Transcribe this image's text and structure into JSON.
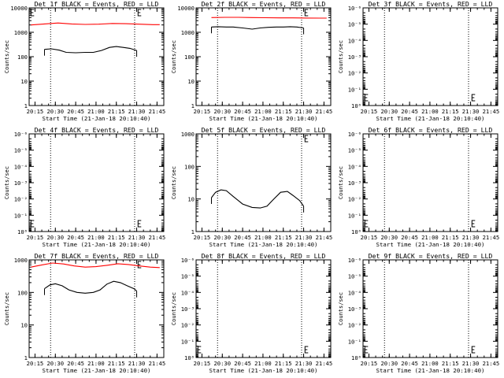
{
  "chart_data": [
    {
      "type": "line",
      "title": "Det 1f BLACK = Events, RED = LLD",
      "xlabel": "Start Time (21-Jan-18 20:10:40)",
      "ylabel": "Counts/sec",
      "yscale": "log",
      "ylim": [
        1,
        10000
      ],
      "ytick_labels": [
        "1",
        "10",
        "100",
        "1000",
        "10000"
      ],
      "xlim": [
        "20:10:40",
        "21:50:00"
      ],
      "xtick_labels": [
        "20:15",
        "20:30",
        "20:45",
        "21:00",
        "21:15",
        "21:30",
        "21:45"
      ],
      "vlines": [
        "20:26:30",
        "21:28:30"
      ],
      "brackets": [
        "20:12",
        "21:31"
      ],
      "series": [
        {
          "name": "Events",
          "color": "#000000",
          "x": [
            "20:22",
            "20:27",
            "20:33",
            "20:38",
            "20:45",
            "20:52",
            "20:58",
            "21:04",
            "21:10",
            "21:15",
            "21:20",
            "21:25",
            "21:30"
          ],
          "y": [
            200,
            210,
            185,
            150,
            145,
            150,
            150,
            180,
            240,
            260,
            240,
            220,
            180
          ]
        },
        {
          "name": "LLD",
          "color": "#ff0000",
          "x": [
            "20:12",
            "20:22",
            "20:32",
            "20:42",
            "20:52",
            "21:02",
            "21:12",
            "21:22",
            "21:32",
            "21:42",
            "21:47"
          ],
          "y": [
            2000,
            2200,
            2400,
            2200,
            2100,
            2150,
            2300,
            2250,
            2150,
            2050,
            2050
          ]
        }
      ]
    },
    {
      "type": "line",
      "title": "Det 2f BLACK = Events, RED = LLD",
      "xlabel": "Start Time (21-Jan-18 20:10:40)",
      "ylabel": "Counts/sec",
      "yscale": "log",
      "ylim": [
        1,
        10000
      ],
      "ytick_labels": [
        "1",
        "10",
        "100",
        "1000",
        "10000"
      ],
      "xlim": [
        "20:10:40",
        "21:50:00"
      ],
      "xtick_labels": [
        "20:15",
        "20:30",
        "20:45",
        "21:00",
        "21:15",
        "21:30",
        "21:45"
      ],
      "vlines": [
        "20:26:30",
        "21:28:30"
      ],
      "brackets": [
        "21:31"
      ],
      "series": [
        {
          "name": "Events",
          "color": "#000000",
          "x": [
            "20:22",
            "20:27",
            "20:33",
            "20:38",
            "20:45",
            "20:52",
            "20:58",
            "21:04",
            "21:10",
            "21:15",
            "21:20",
            "21:25",
            "21:30"
          ],
          "y": [
            1650,
            1700,
            1650,
            1650,
            1500,
            1350,
            1500,
            1600,
            1650,
            1650,
            1700,
            1650,
            1500
          ]
        },
        {
          "name": "LLD",
          "color": "#ff0000",
          "x": [
            "20:22",
            "20:32",
            "20:42",
            "20:52",
            "21:02",
            "21:12",
            "21:22",
            "21:32",
            "21:42",
            "21:47"
          ],
          "y": [
            4000,
            4100,
            4100,
            4000,
            3950,
            3900,
            3900,
            3850,
            3800,
            3800
          ]
        }
      ]
    },
    {
      "type": "line",
      "title": "Det 3f BLACK = Events, RED = LLD",
      "xlabel": "Start Time (21-Jan-18 20:10:40)",
      "ylabel": "Counts/sec",
      "yscale": "log",
      "ylim": [
        1,
        1e-06
      ],
      "ytick_labels": [
        "10⁰",
        "10⁻¹",
        "10⁻²",
        "10⁻³",
        "10⁻⁴",
        "10⁻⁵",
        "10⁻⁶"
      ],
      "xlim": [
        "20:10:40",
        "21:50:00"
      ],
      "xtick_labels": [
        "20:15",
        "20:30",
        "20:45",
        "21:00",
        "21:15",
        "21:30",
        "21:45"
      ],
      "vlines": [
        "20:26:30",
        "21:28:30"
      ],
      "brackets": [
        "20:12",
        "21:31"
      ],
      "series": []
    },
    {
      "type": "line",
      "title": "Det 4f BLACK = Events, RED = LLD",
      "xlabel": "Start Time (21-Jan-18 20:10:40)",
      "ylabel": "Counts/sec",
      "yscale": "log",
      "ylim": [
        1,
        1e-06
      ],
      "ytick_labels": [
        "10⁰",
        "10⁻¹",
        "10⁻²",
        "10⁻³",
        "10⁻⁴",
        "10⁻⁵",
        "10⁻⁶"
      ],
      "xlim": [
        "20:10:40",
        "21:50:00"
      ],
      "xtick_labels": [
        "20:15",
        "20:30",
        "20:45",
        "21:00",
        "21:15",
        "21:30",
        "21:45"
      ],
      "vlines": [
        "20:26:30",
        "21:28:30"
      ],
      "brackets": [
        "20:12",
        "21:31"
      ],
      "series": []
    },
    {
      "type": "line",
      "title": "Det 5f BLACK = Events, RED = LLD",
      "xlabel": "Start Time (21-Jan-18 20:10:40)",
      "ylabel": "Counts/sec",
      "yscale": "log",
      "ylim": [
        1,
        1000
      ],
      "ytick_labels": [
        "1",
        "10",
        "100",
        "1000"
      ],
      "xlim": [
        "20:10:40",
        "21:50:00"
      ],
      "xtick_labels": [
        "20:15",
        "20:30",
        "20:45",
        "21:00",
        "21:15",
        "21:30",
        "21:45"
      ],
      "vlines": [
        "20:26:30",
        "21:28:30"
      ],
      "brackets": [
        "21:31"
      ],
      "series": [
        {
          "name": "Events",
          "color": "#000000",
          "x": [
            "20:22",
            "20:25",
            "20:29",
            "20:33",
            "20:38",
            "20:45",
            "20:52",
            "20:58",
            "21:03",
            "21:08",
            "21:13",
            "21:18",
            "21:22",
            "21:27",
            "21:30"
          ],
          "y": [
            11,
            16,
            19,
            18,
            12,
            7,
            5.5,
            5.3,
            6,
            10,
            16,
            17,
            13,
            9,
            6
          ]
        }
      ]
    },
    {
      "type": "line",
      "title": "Det 6f BLACK = Events, RED = LLD",
      "xlabel": "Start Time (21-Jan-18 20:10:40)",
      "ylabel": "Counts/sec",
      "yscale": "log",
      "ylim": [
        1,
        1e-06
      ],
      "ytick_labels": [
        "10⁰",
        "10⁻¹",
        "10⁻²",
        "10⁻³",
        "10⁻⁴",
        "10⁻⁵",
        "10⁻⁶"
      ],
      "xlim": [
        "20:10:40",
        "21:50:00"
      ],
      "xtick_labels": [
        "20:15",
        "20:30",
        "20:45",
        "21:00",
        "21:15",
        "21:30",
        "21:45"
      ],
      "vlines": [
        "20:26:30",
        "21:28:30"
      ],
      "brackets": [
        "20:12",
        "21:31"
      ],
      "series": []
    },
    {
      "type": "line",
      "title": "Det 7f BLACK = Events, RED = LLD",
      "xlabel": "Start Time (21-Jan-18 20:10:40)",
      "ylabel": "Counts/sec",
      "yscale": "log",
      "ylim": [
        1,
        1000
      ],
      "ytick_labels": [
        "1",
        "10",
        "100",
        "1000"
      ],
      "xlim": [
        "20:10:40",
        "21:50:00"
      ],
      "xtick_labels": [
        "20:15",
        "20:30",
        "20:45",
        "21:00",
        "21:15",
        "21:30",
        "21:45"
      ],
      "vlines": [
        "20:26:30",
        "21:28:30"
      ],
      "brackets": [
        "21:31"
      ],
      "series": [
        {
          "name": "Events",
          "color": "#000000",
          "x": [
            "20:22",
            "20:26",
            "20:30",
            "20:35",
            "20:40",
            "20:46",
            "20:52",
            "20:58",
            "21:03",
            "21:08",
            "21:13",
            "21:18",
            "21:23",
            "21:28",
            "21:30"
          ],
          "y": [
            130,
            170,
            185,
            160,
            120,
            100,
            95,
            100,
            120,
            180,
            220,
            200,
            160,
            130,
            110
          ]
        },
        {
          "name": "LLD",
          "color": "#ff0000",
          "x": [
            "20:12",
            "20:20",
            "20:28",
            "20:36",
            "20:44",
            "20:52",
            "21:00",
            "21:08",
            "21:16",
            "21:24",
            "21:32",
            "21:40",
            "21:47"
          ],
          "y": [
            600,
            700,
            800,
            750,
            650,
            600,
            620,
            680,
            760,
            720,
            650,
            600,
            580
          ]
        }
      ]
    },
    {
      "type": "line",
      "title": "Det 8f BLACK = Events, RED = LLD",
      "xlabel": "Start Time (21-Jan-18 20:10:40)",
      "ylabel": "Counts/sec",
      "yscale": "log",
      "ylim": [
        1,
        1e-06
      ],
      "ytick_labels": [
        "10⁰",
        "10⁻¹",
        "10⁻²",
        "10⁻³",
        "10⁻⁴",
        "10⁻⁵",
        "10⁻⁶"
      ],
      "xlim": [
        "20:10:40",
        "21:50:00"
      ],
      "xtick_labels": [
        "20:15",
        "20:30",
        "20:45",
        "21:00",
        "21:15",
        "21:30",
        "21:45"
      ],
      "vlines": [
        "20:26:30",
        "21:28:30"
      ],
      "brackets": [
        "20:12",
        "21:31"
      ],
      "series": []
    },
    {
      "type": "line",
      "title": "Det 9f BLACK = Events, RED = LLD",
      "xlabel": "Start Time (21-Jan-18 20:10:40)",
      "ylabel": "Counts/sec",
      "yscale": "log",
      "ylim": [
        1,
        1e-06
      ],
      "ytick_labels": [
        "10⁰",
        "10⁻¹",
        "10⁻²",
        "10⁻³",
        "10⁻⁴",
        "10⁻⁵",
        "10⁻⁶"
      ],
      "xlim": [
        "20:10:40",
        "21:50:00"
      ],
      "xtick_labels": [
        "20:15",
        "20:30",
        "20:45",
        "21:00",
        "21:15",
        "21:30",
        "21:45"
      ],
      "vlines": [
        "20:26:30",
        "21:28:30"
      ],
      "brackets": [
        "20:12",
        "21:31"
      ],
      "series": []
    }
  ]
}
